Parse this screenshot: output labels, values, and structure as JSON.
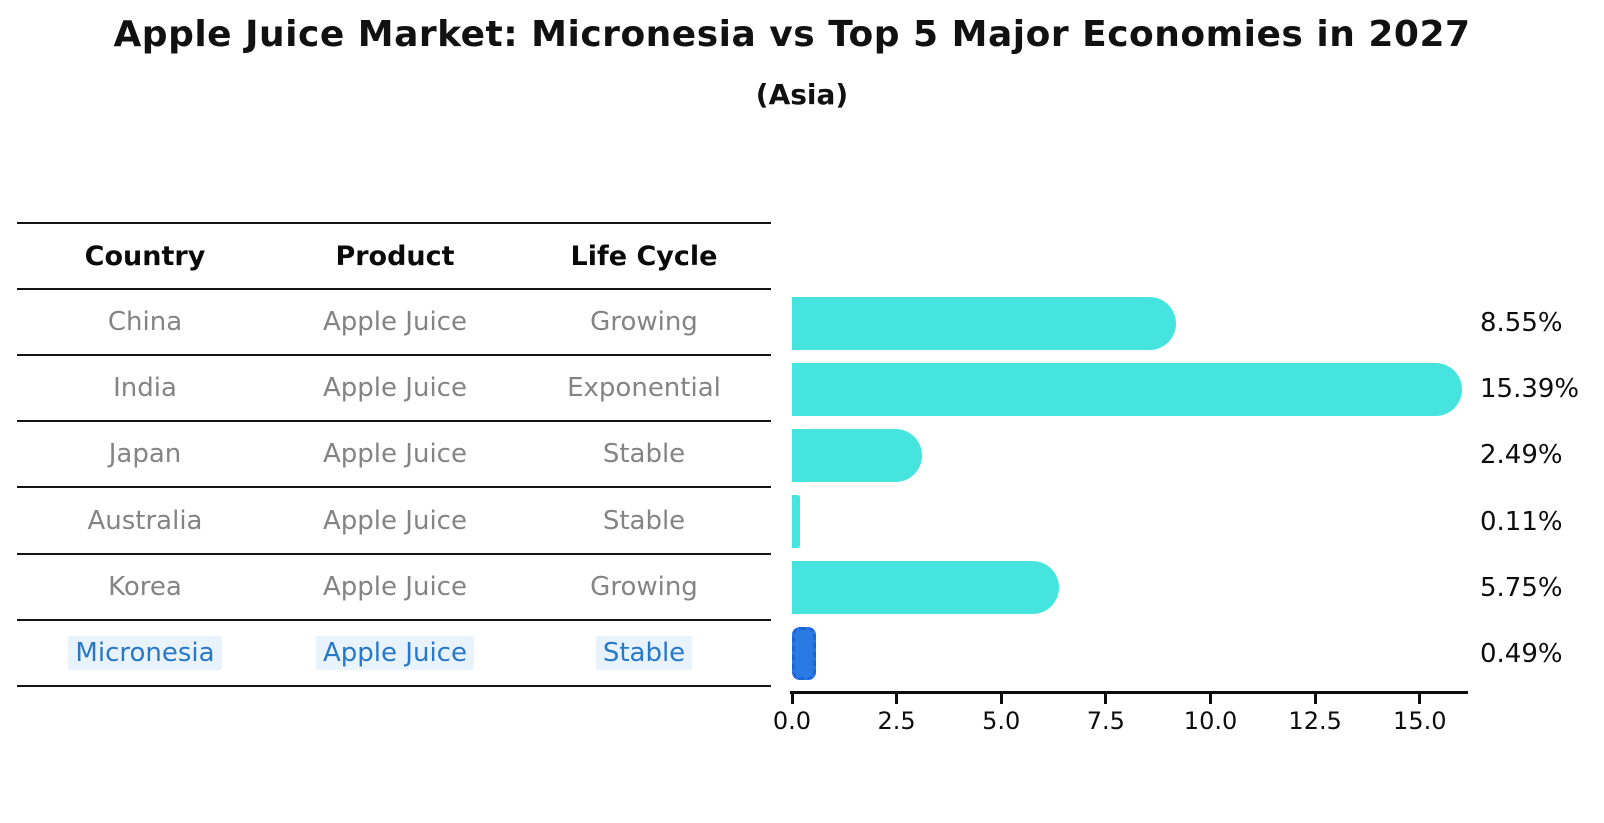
{
  "title": "Apple Juice Market: Micronesia vs Top 5 Major Economies in 2027",
  "subtitle": "(Asia)",
  "table": {
    "headers": [
      "Country",
      "Product",
      "Life Cycle"
    ],
    "rows": [
      {
        "country": "China",
        "product": "Apple Juice",
        "life_cycle": "Growing",
        "highlight": false
      },
      {
        "country": "India",
        "product": "Apple Juice",
        "life_cycle": "Exponential",
        "highlight": false
      },
      {
        "country": "Japan",
        "product": "Apple Juice",
        "life_cycle": "Stable",
        "highlight": false
      },
      {
        "country": "Australia",
        "product": "Apple Juice",
        "life_cycle": "Stable",
        "highlight": false
      },
      {
        "country": "Korea",
        "product": "Apple Juice",
        "life_cycle": "Growing",
        "highlight": false
      },
      {
        "country": "Micronesia",
        "product": "Apple Juice",
        "life_cycle": "Stable",
        "highlight": true
      }
    ]
  },
  "chart_data": {
    "type": "bar",
    "orientation": "horizontal",
    "title": "Apple Juice Market: Micronesia vs Top 5 Major Economies in 2027",
    "subtitle": "(Asia)",
    "categories": [
      "China",
      "India",
      "Japan",
      "Australia",
      "Korea",
      "Micronesia"
    ],
    "values": [
      8.55,
      15.39,
      2.49,
      0.11,
      5.75,
      0.49
    ],
    "value_labels": [
      "8.55%",
      "15.39%",
      "2.49%",
      "0.11%",
      "5.75%",
      "0.49%"
    ],
    "xlabel": "",
    "ylabel": "",
    "xlim": [
      0,
      16.2
    ],
    "xticks": [
      0,
      2.5,
      5,
      7.5,
      10,
      12.5,
      15
    ],
    "xtick_labels": [
      "0.0",
      "2.5",
      "5.0",
      "7.5",
      "10.0",
      "12.5",
      "15.0"
    ],
    "grid": false,
    "legend": false,
    "bar_color": "#45e4de",
    "highlight_index": 5,
    "highlight_bar_color": "#2a7ae4",
    "highlight_bar_border_color": "#1e66d8",
    "highlight_text_color": "#2878c8",
    "row_text_color": "#848484",
    "axis_color": "#0d0d0d"
  }
}
